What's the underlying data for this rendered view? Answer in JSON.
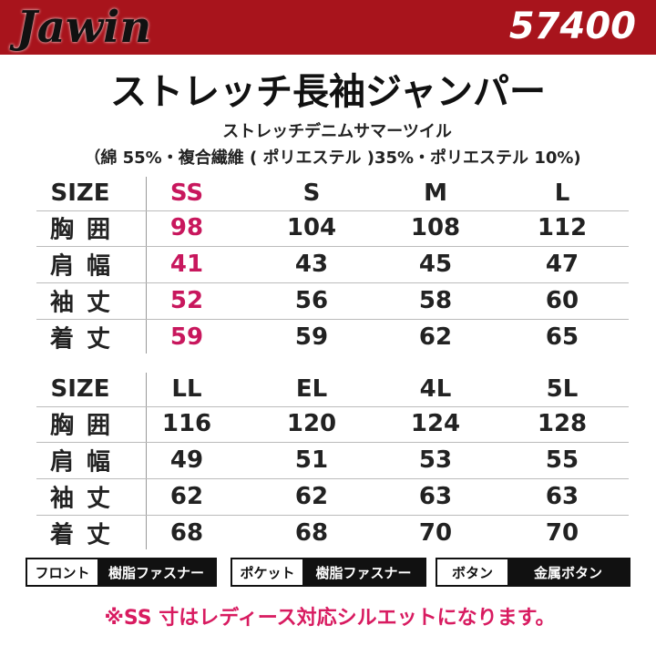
{
  "header": {
    "brand": "Jawin",
    "model": "57400"
  },
  "title": "ストレッチ長袖ジャンパー",
  "subtitle_lines": [
    "ストレッチデニムサマーツイル",
    "（綿 55%・複合繊維 ( ポリエステル )35%・ポリエステル 10%)"
  ],
  "tables": [
    {
      "header": [
        "SIZE",
        "SS",
        "S",
        "M",
        "L"
      ],
      "rows": [
        [
          "胸囲",
          98,
          104,
          108,
          112
        ],
        [
          "肩幅",
          41,
          43,
          45,
          47
        ],
        [
          "袖丈",
          52,
          56,
          58,
          60
        ],
        [
          "着丈",
          59,
          59,
          62,
          65
        ]
      ]
    },
    {
      "header": [
        "SIZE",
        "LL",
        "EL",
        "4L",
        "5L"
      ],
      "rows": [
        [
          "胸囲",
          116,
          120,
          124,
          128
        ],
        [
          "肩幅",
          49,
          51,
          53,
          55
        ],
        [
          "袖丈",
          62,
          62,
          63,
          63
        ],
        [
          "着丈",
          68,
          68,
          70,
          70
        ]
      ]
    }
  ],
  "specs": [
    {
      "label": "フロント",
      "value": "樹脂ファスナー"
    },
    {
      "label": "ポケット",
      "value": "樹脂ファスナー"
    },
    {
      "label": "ボタン",
      "value": "金属ボタン"
    }
  ],
  "note": "※SS 寸はレディース対応シルエットになります。"
}
